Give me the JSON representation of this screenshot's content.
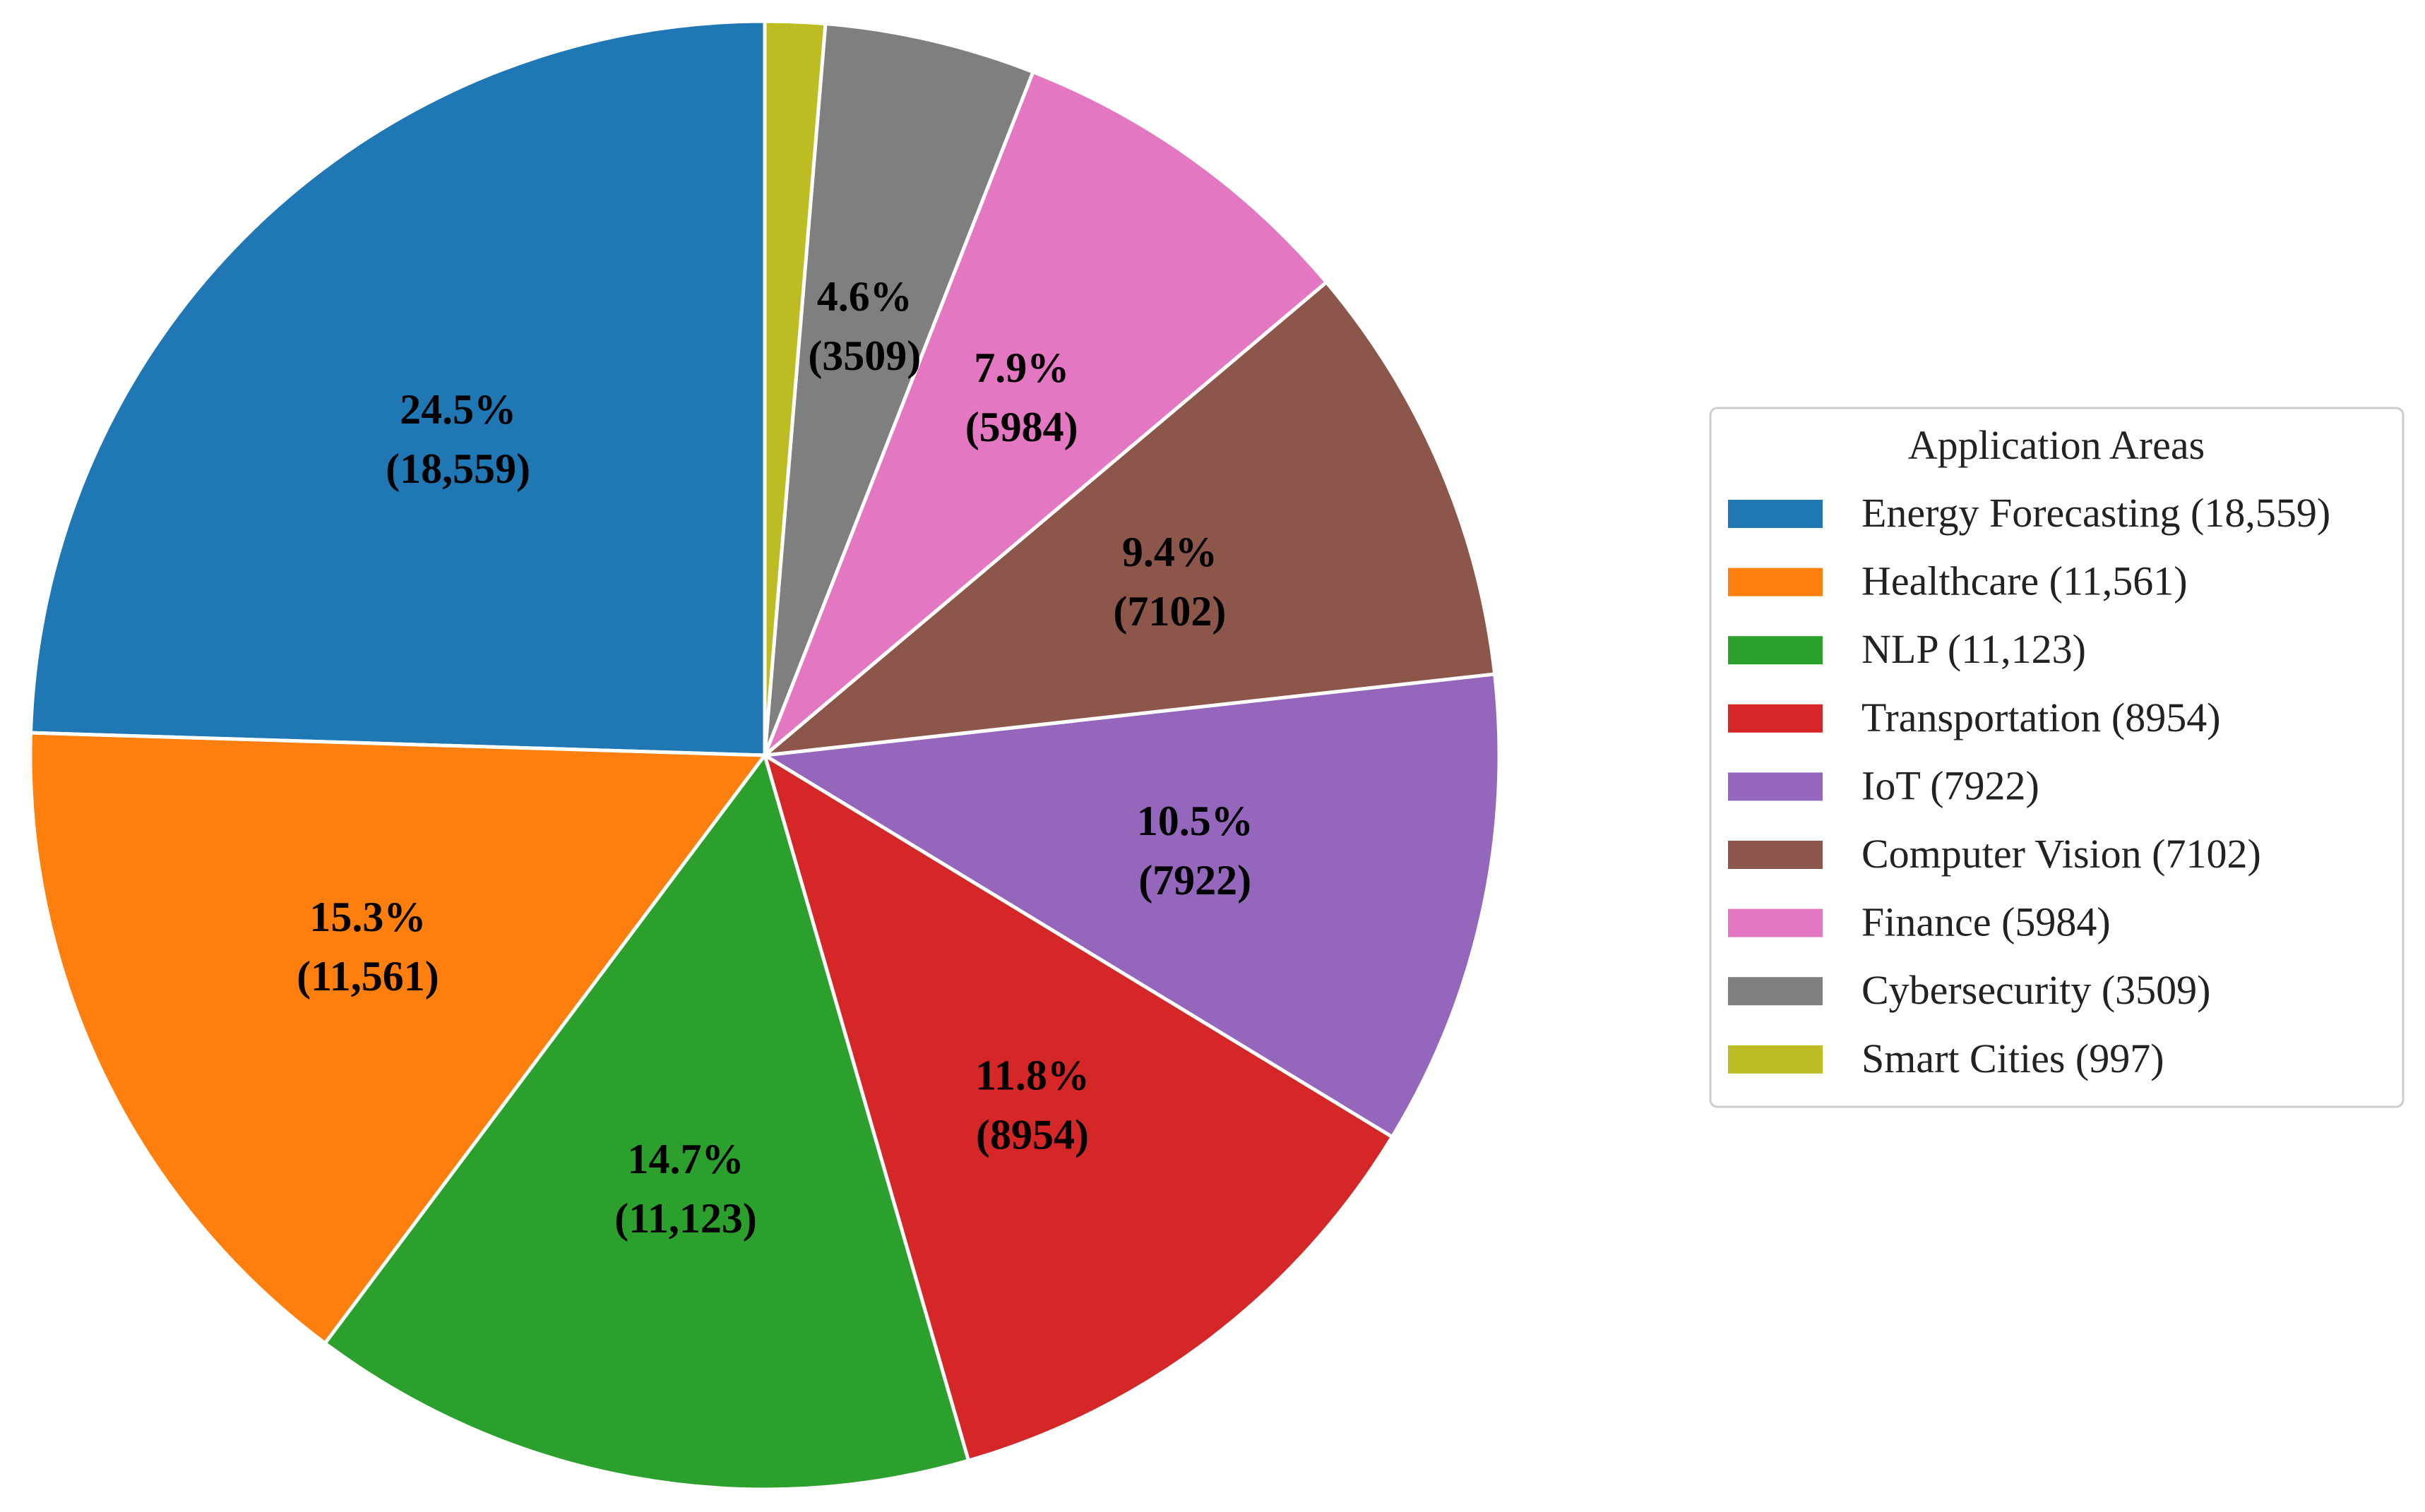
{
  "chart_data": {
    "type": "pie",
    "title": "",
    "start_angle_deg": 90,
    "direction": "counterclockwise",
    "legend": {
      "title": "Application Areas",
      "placement": "right"
    },
    "slices": [
      {
        "name": "Energy Forecasting",
        "value": 18559,
        "percent_label": "24.5%",
        "value_label": "(18,559)",
        "legend_label": "Energy Forecasting (18,559)",
        "color": "#1f77b4"
      },
      {
        "name": "Healthcare",
        "value": 11561,
        "percent_label": "15.3%",
        "value_label": "(11,561)",
        "legend_label": "Healthcare (11,561)",
        "color": "#ff7f0e"
      },
      {
        "name": "NLP",
        "value": 11123,
        "percent_label": "14.7%",
        "value_label": "(11,123)",
        "legend_label": "NLP (11,123)",
        "color": "#2ca02c"
      },
      {
        "name": "Transportation",
        "value": 8954,
        "percent_label": "11.8%",
        "value_label": "(8954)",
        "legend_label": "Transportation (8954)",
        "color": "#d62728"
      },
      {
        "name": "IoT",
        "value": 7922,
        "percent_label": "10.5%",
        "value_label": "(7922)",
        "legend_label": "IoT (7922)",
        "color": "#9467bd"
      },
      {
        "name": "Computer Vision",
        "value": 7102,
        "percent_label": "9.4%",
        "value_label": "(7102)",
        "legend_label": "Computer Vision (7102)",
        "color": "#8c564b"
      },
      {
        "name": "Finance",
        "value": 5984,
        "percent_label": "7.9%",
        "value_label": "(5984)",
        "legend_label": "Finance (5984)",
        "color": "#e377c2"
      },
      {
        "name": "Cybersecurity",
        "value": 3509,
        "percent_label": "4.6%",
        "value_label": "(3509)",
        "legend_label": "Cybersecurity (3509)",
        "color": "#7f7f7f"
      },
      {
        "name": "Smart Cities",
        "value": 997,
        "percent_label": "",
        "value_label": "",
        "legend_label": "Smart Cities (997)",
        "color": "#bcbd22"
      }
    ]
  }
}
